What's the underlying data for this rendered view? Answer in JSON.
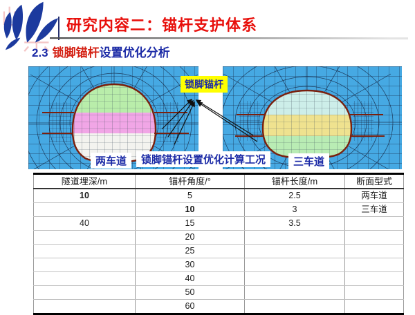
{
  "slide": {
    "header": {
      "title": "研究内容二：锚杆支护体系"
    },
    "section": {
      "number": "2.3",
      "highlight": "锁脚锚杆",
      "rest": "设置优化分析"
    }
  },
  "figure": {
    "callout": "锁脚锚杆",
    "left_label": "两车道",
    "center_label": "锁脚锚杆设置优化计算工况",
    "right_label": "三车道"
  },
  "table": {
    "headers": [
      "隧道埋深/m",
      "锚杆角度/°",
      "锚杆长度/m",
      "断面型式"
    ],
    "rows": [
      [
        "10",
        "5",
        "2.5",
        "两车道"
      ],
      [
        "",
        "10",
        "3",
        "三车道"
      ],
      [
        "40",
        "15",
        "3.5",
        ""
      ],
      [
        "",
        "20",
        "",
        ""
      ],
      [
        "",
        "25",
        "",
        ""
      ],
      [
        "",
        "30",
        "",
        ""
      ],
      [
        "",
        "40",
        "",
        ""
      ],
      [
        "",
        "50",
        "",
        ""
      ],
      [
        "",
        "60",
        "",
        ""
      ]
    ],
    "bold_cells": [
      [
        0,
        0
      ],
      [
        1,
        1
      ]
    ]
  },
  "colors": {
    "title_red": "#e8100c",
    "heading_blue": "#1b2aa6",
    "highlight_red": "#d42114",
    "callout_yellow": "#ffff00",
    "mesh_background": "#46a9e3",
    "mesh_line": "#14213d",
    "tunnel_outline": "#7a200e",
    "left_tunnel_bands": [
      "#b9edaa",
      "#f1a6e6",
      "#f3f3ef"
    ],
    "right_tunnel_bands": [
      "#cdeee9",
      "#efe28f",
      "#b9ecb4"
    ],
    "logo_blue": "#1c3a9e"
  }
}
